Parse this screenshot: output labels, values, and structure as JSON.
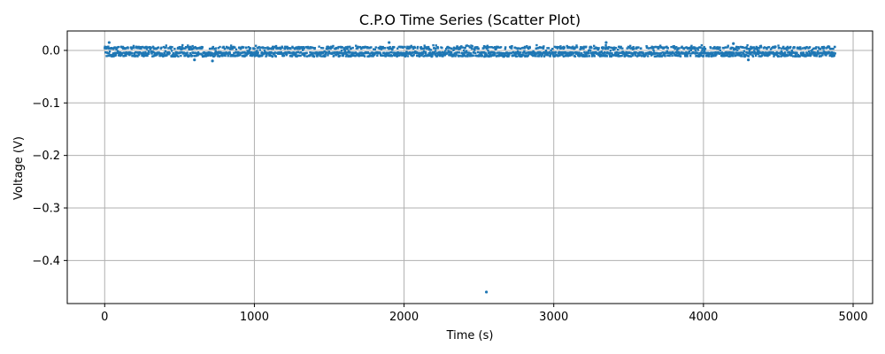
{
  "chart_data": {
    "type": "scatter",
    "title": "C.P.O Time Series (Scatter Plot)",
    "xlabel": "Time (s)",
    "ylabel": "Voltage (V)",
    "xlim": [
      -250,
      5130
    ],
    "ylim": [
      -0.482,
      0.037
    ],
    "grid": true,
    "marker_color": "#1f77b4",
    "xticks": [
      {
        "value": 0,
        "label": "0"
      },
      {
        "value": 1000,
        "label": "1000"
      },
      {
        "value": 2000,
        "label": "2000"
      },
      {
        "value": 3000,
        "label": "3000"
      },
      {
        "value": 4000,
        "label": "4000"
      },
      {
        "value": 5000,
        "label": "5000"
      }
    ],
    "yticks": [
      {
        "value": 0.0,
        "label": "0.0"
      },
      {
        "value": -0.1,
        "label": "−0.1"
      },
      {
        "value": -0.2,
        "label": "−0.2"
      },
      {
        "value": -0.3,
        "label": "−0.3"
      },
      {
        "value": -0.4,
        "label": "−0.4"
      }
    ],
    "series": [
      {
        "x_range": [
          0,
          4880
        ],
        "band_y_range": [
          -0.012,
          0.01
        ],
        "main_levels": [
          -0.005,
          -0.01,
          0.005
        ],
        "outliers": [
          {
            "x": 2550,
            "y": -0.46
          },
          {
            "x": 30,
            "y": 0.015
          },
          {
            "x": 1900,
            "y": 0.015
          },
          {
            "x": 3350,
            "y": 0.015
          },
          {
            "x": 4200,
            "y": 0.013
          },
          {
            "x": 720,
            "y": -0.02
          },
          {
            "x": 600,
            "y": -0.018
          },
          {
            "x": 4300,
            "y": -0.018
          }
        ]
      }
    ]
  }
}
